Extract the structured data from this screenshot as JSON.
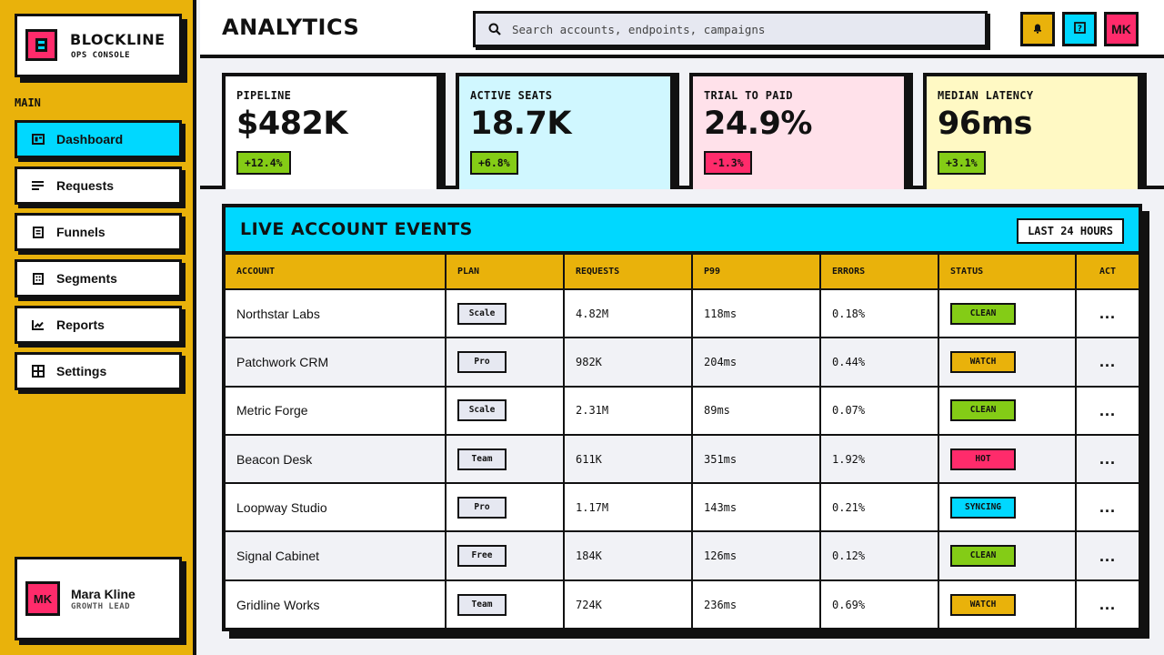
{
  "brand": {
    "name": "BLOCKLINE",
    "subtitle": "OPS CONSOLE"
  },
  "sidebar": {
    "section_label": "MAIN",
    "items": [
      {
        "label": "Dashboard",
        "icon": "dashboard-icon",
        "active": true
      },
      {
        "label": "Requests",
        "icon": "list-icon",
        "active": false
      },
      {
        "label": "Funnels",
        "icon": "document-icon",
        "active": false
      },
      {
        "label": "Segments",
        "icon": "building-icon",
        "active": false
      },
      {
        "label": "Reports",
        "icon": "chart-icon",
        "active": false
      },
      {
        "label": "Settings",
        "icon": "grid-icon",
        "active": false
      }
    ]
  },
  "user": {
    "initials": "MK",
    "name": "Mara Kline",
    "role": "GROWTH LEAD"
  },
  "header": {
    "title": "ANALYTICS",
    "search_placeholder": "Search accounts, endpoints, campaigns",
    "buttons": [
      {
        "icon": "bell-icon",
        "color": "#e9b20b"
      },
      {
        "icon": "help-icon",
        "color": "#00d8ff"
      },
      {
        "label": "MK",
        "color": "#ff2b6b"
      }
    ]
  },
  "kpis": [
    {
      "label": "PIPELINE",
      "value": "$482K",
      "delta": "+12.4%",
      "bg": "#ffffff",
      "delta_bg": "#84cc16"
    },
    {
      "label": "ACTIVE SEATS",
      "value": "18.7K",
      "delta": "+6.8%",
      "bg": "#d0f7ff",
      "delta_bg": "#84cc16"
    },
    {
      "label": "TRIAL TO PAID",
      "value": "24.9%",
      "delta": "-1.3%",
      "bg": "#ffe1ea",
      "delta_bg": "#ff2b6b"
    },
    {
      "label": "MEDIAN LATENCY",
      "value": "96ms",
      "delta": "+3.1%",
      "bg": "#fff9c4",
      "delta_bg": "#84cc16"
    }
  ],
  "table": {
    "title": "LIVE ACCOUNT EVENTS",
    "range": "LAST 24 HOURS",
    "columns": [
      "ACCOUNT",
      "PLAN",
      "REQUESTS",
      "P99",
      "ERRORS",
      "STATUS",
      "ACT"
    ],
    "rows": [
      {
        "account": "Northstar Labs",
        "plan": "Scale",
        "requests": "4.82M",
        "p99": "118ms",
        "errors": "0.18%",
        "status": "CLEAN"
      },
      {
        "account": "Patchwork CRM",
        "plan": "Pro",
        "requests": "982K",
        "p99": "204ms",
        "errors": "0.44%",
        "status": "WATCH"
      },
      {
        "account": "Metric Forge",
        "plan": "Scale",
        "requests": "2.31M",
        "p99": "89ms",
        "errors": "0.07%",
        "status": "CLEAN"
      },
      {
        "account": "Beacon Desk",
        "plan": "Team",
        "requests": "611K",
        "p99": "351ms",
        "errors": "1.92%",
        "status": "HOT"
      },
      {
        "account": "Loopway Studio",
        "plan": "Pro",
        "requests": "1.17M",
        "p99": "143ms",
        "errors": "0.21%",
        "status": "SYNCING"
      },
      {
        "account": "Signal Cabinet",
        "plan": "Free",
        "requests": "184K",
        "p99": "126ms",
        "errors": "0.12%",
        "status": "CLEAN"
      },
      {
        "account": "Gridline Works",
        "plan": "Team",
        "requests": "724K",
        "p99": "236ms",
        "errors": "0.69%",
        "status": "WATCH"
      }
    ],
    "action_label": "...",
    "status_colors": {
      "CLEAN": "#84cc16",
      "WATCH": "#e9b20b",
      "HOT": "#ff2b6b",
      "SYNCING": "#00d8ff"
    }
  }
}
